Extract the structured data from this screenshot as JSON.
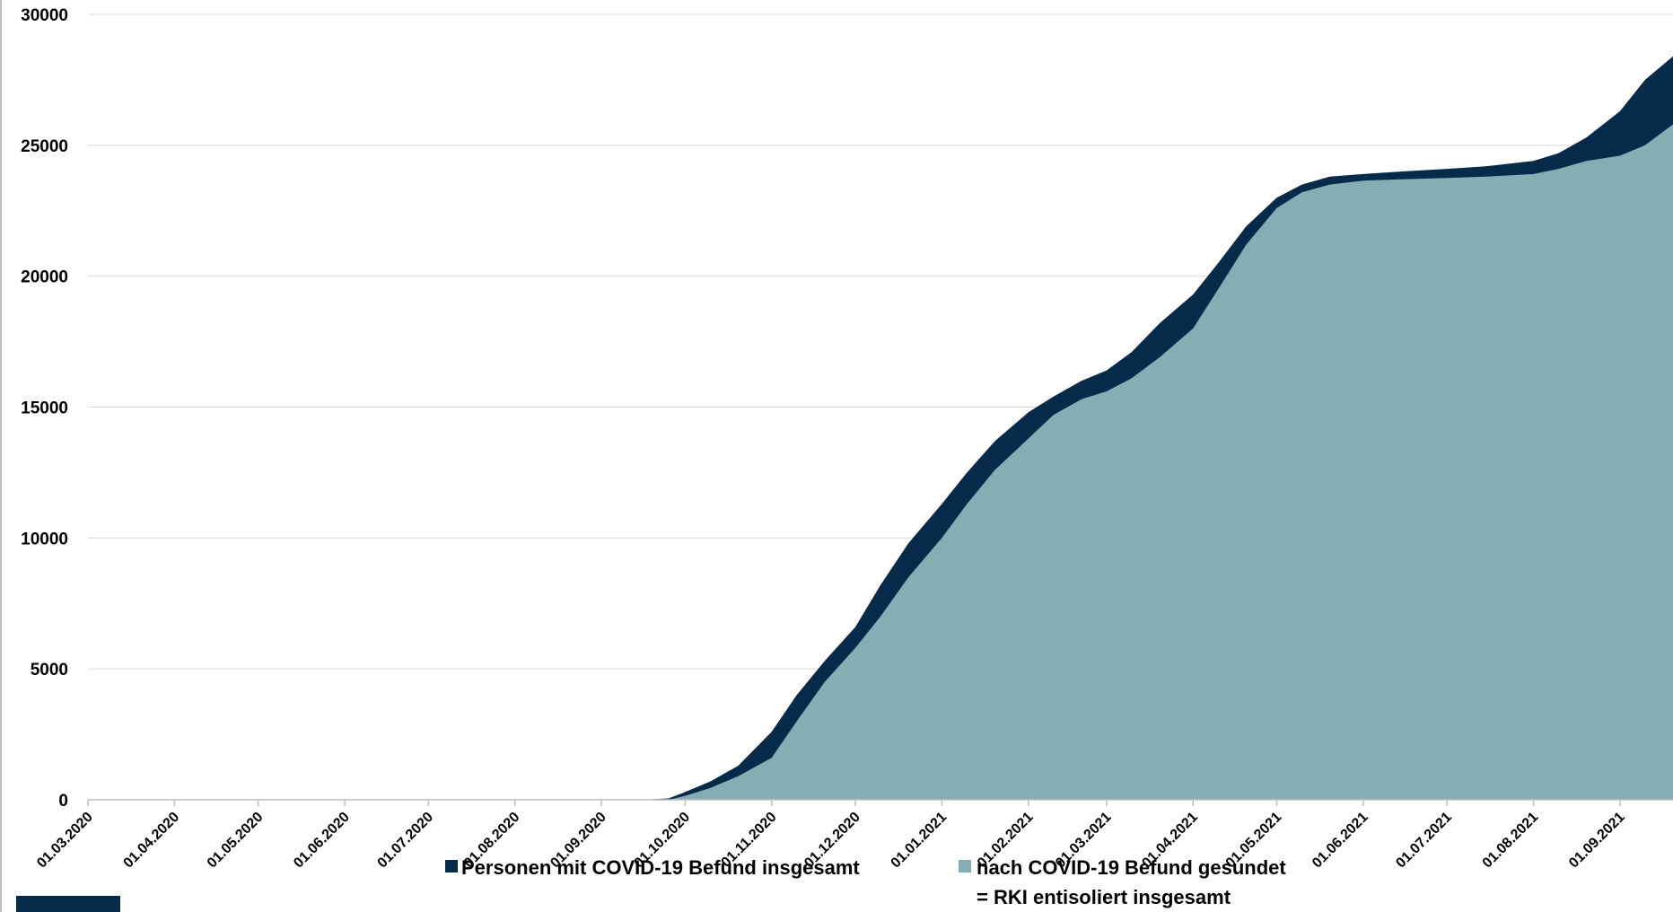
{
  "colors": {
    "total": "#062a4a",
    "recovered": "#84adb4",
    "grid": "#d9d9d9",
    "axis": "#bfbfbf"
  },
  "chart_data": {
    "type": "area",
    "title": "",
    "xlabel": "",
    "ylabel": "",
    "ylim": [
      0,
      30000
    ],
    "yticks": [
      0,
      5000,
      10000,
      15000,
      20000,
      25000,
      30000
    ],
    "xlim": [
      "2020-03-01",
      "2021-09-20"
    ],
    "xtick_labels": [
      "01.03.2020",
      "01.04.2020",
      "01.05.2020",
      "01.06.2020",
      "01.07.2020",
      "01.08.2020",
      "01.09.2020",
      "01.10.2020",
      "01.11.2020",
      "01.12.2020",
      "01.01.2021",
      "01.02.2021",
      "01.03.2021",
      "01.04.2021",
      "01.05.2021",
      "01.06.2021",
      "01.07.2021",
      "01.08.2021",
      "01.09.2021"
    ],
    "grid": true,
    "legend_position": "bottom",
    "x": [
      "2020-03-01",
      "2020-09-15",
      "2020-09-25",
      "2020-10-01",
      "2020-10-10",
      "2020-10-20",
      "2020-11-01",
      "2020-11-10",
      "2020-11-20",
      "2020-12-01",
      "2020-12-10",
      "2020-12-20",
      "2021-01-01",
      "2021-01-10",
      "2021-01-20",
      "2021-02-01",
      "2021-02-10",
      "2021-02-20",
      "2021-03-01",
      "2021-03-10",
      "2021-03-20",
      "2021-04-01",
      "2021-04-10",
      "2021-04-20",
      "2021-05-01",
      "2021-05-10",
      "2021-05-20",
      "2021-06-01",
      "2021-06-15",
      "2021-07-01",
      "2021-07-15",
      "2021-08-01",
      "2021-08-10",
      "2021-08-20",
      "2021-09-01",
      "2021-09-10",
      "2021-09-20"
    ],
    "series": [
      {
        "name": "Personen mit COVID-19 Befund insgesamt",
        "color": "#062a4a",
        "values": [
          0,
          0,
          50,
          300,
          700,
          1300,
          2600,
          4000,
          5300,
          6600,
          8200,
          9800,
          11300,
          12500,
          13700,
          14800,
          15400,
          16000,
          16400,
          17100,
          18200,
          19300,
          20500,
          21900,
          23000,
          23500,
          23800,
          23900,
          24000,
          24100,
          24200,
          24400,
          24700,
          25300,
          26300,
          27500,
          28400
        ]
      },
      {
        "name": "nach COVID-19 Befund gesundet = RKI entisoliert insgesamt",
        "color": "#84adb4",
        "values": [
          0,
          0,
          0,
          150,
          450,
          900,
          1600,
          3000,
          4500,
          5800,
          7000,
          8500,
          10000,
          11300,
          12600,
          13800,
          14700,
          15300,
          15600,
          16100,
          16900,
          18000,
          19500,
          21200,
          22600,
          23200,
          23500,
          23650,
          23700,
          23750,
          23800,
          23900,
          24100,
          24400,
          24600,
          25000,
          25800
        ]
      }
    ]
  },
  "legend": {
    "total_label": "Personen mit COVID-19 Befund insgesamt",
    "recovered_label_line1": "nach COVID-19 Befund gesundet",
    "recovered_label_line2": "= RKI entisoliert insgesamt"
  }
}
